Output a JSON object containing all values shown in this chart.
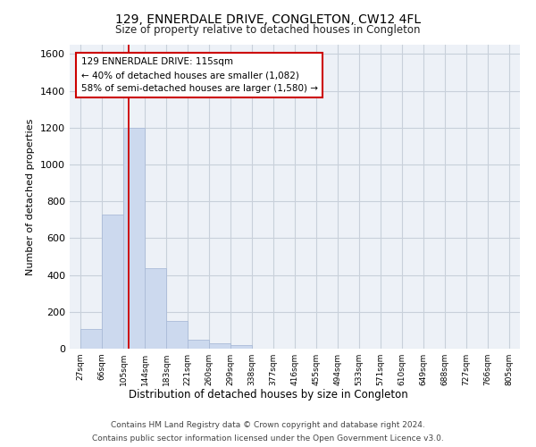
{
  "title": "129, ENNERDALE DRIVE, CONGLETON, CW12 4FL",
  "subtitle": "Size of property relative to detached houses in Congleton",
  "xlabel": "Distribution of detached houses by size in Congleton",
  "ylabel": "Number of detached properties",
  "bar_color": "#ccd9ee",
  "bar_edge_color": "#aabbd8",
  "grid_color": "#c8d0da",
  "background_color": "#edf1f7",
  "annotation_box_color": "#cc0000",
  "red_line_color": "#cc0000",
  "property_size": 115,
  "annotation_line1": "129 ENNERDALE DRIVE: 115sqm",
  "annotation_line2": "← 40% of detached houses are smaller (1,082)",
  "annotation_line3": "58% of semi-detached houses are larger (1,580) →",
  "bin_edges": [
    27,
    66,
    105,
    144,
    183,
    221,
    260,
    299,
    338,
    377,
    416,
    455,
    494,
    533,
    571,
    610,
    649,
    688,
    727,
    766,
    805
  ],
  "bar_heights": [
    105,
    730,
    1200,
    435,
    150,
    50,
    30,
    20,
    0,
    0,
    0,
    0,
    0,
    0,
    0,
    0,
    0,
    0,
    0,
    0
  ],
  "ylim": [
    0,
    1650
  ],
  "yticks": [
    0,
    200,
    400,
    600,
    800,
    1000,
    1200,
    1400,
    1600
  ],
  "footnote1": "Contains HM Land Registry data © Crown copyright and database right 2024.",
  "footnote2": "Contains public sector information licensed under the Open Government Licence v3.0."
}
